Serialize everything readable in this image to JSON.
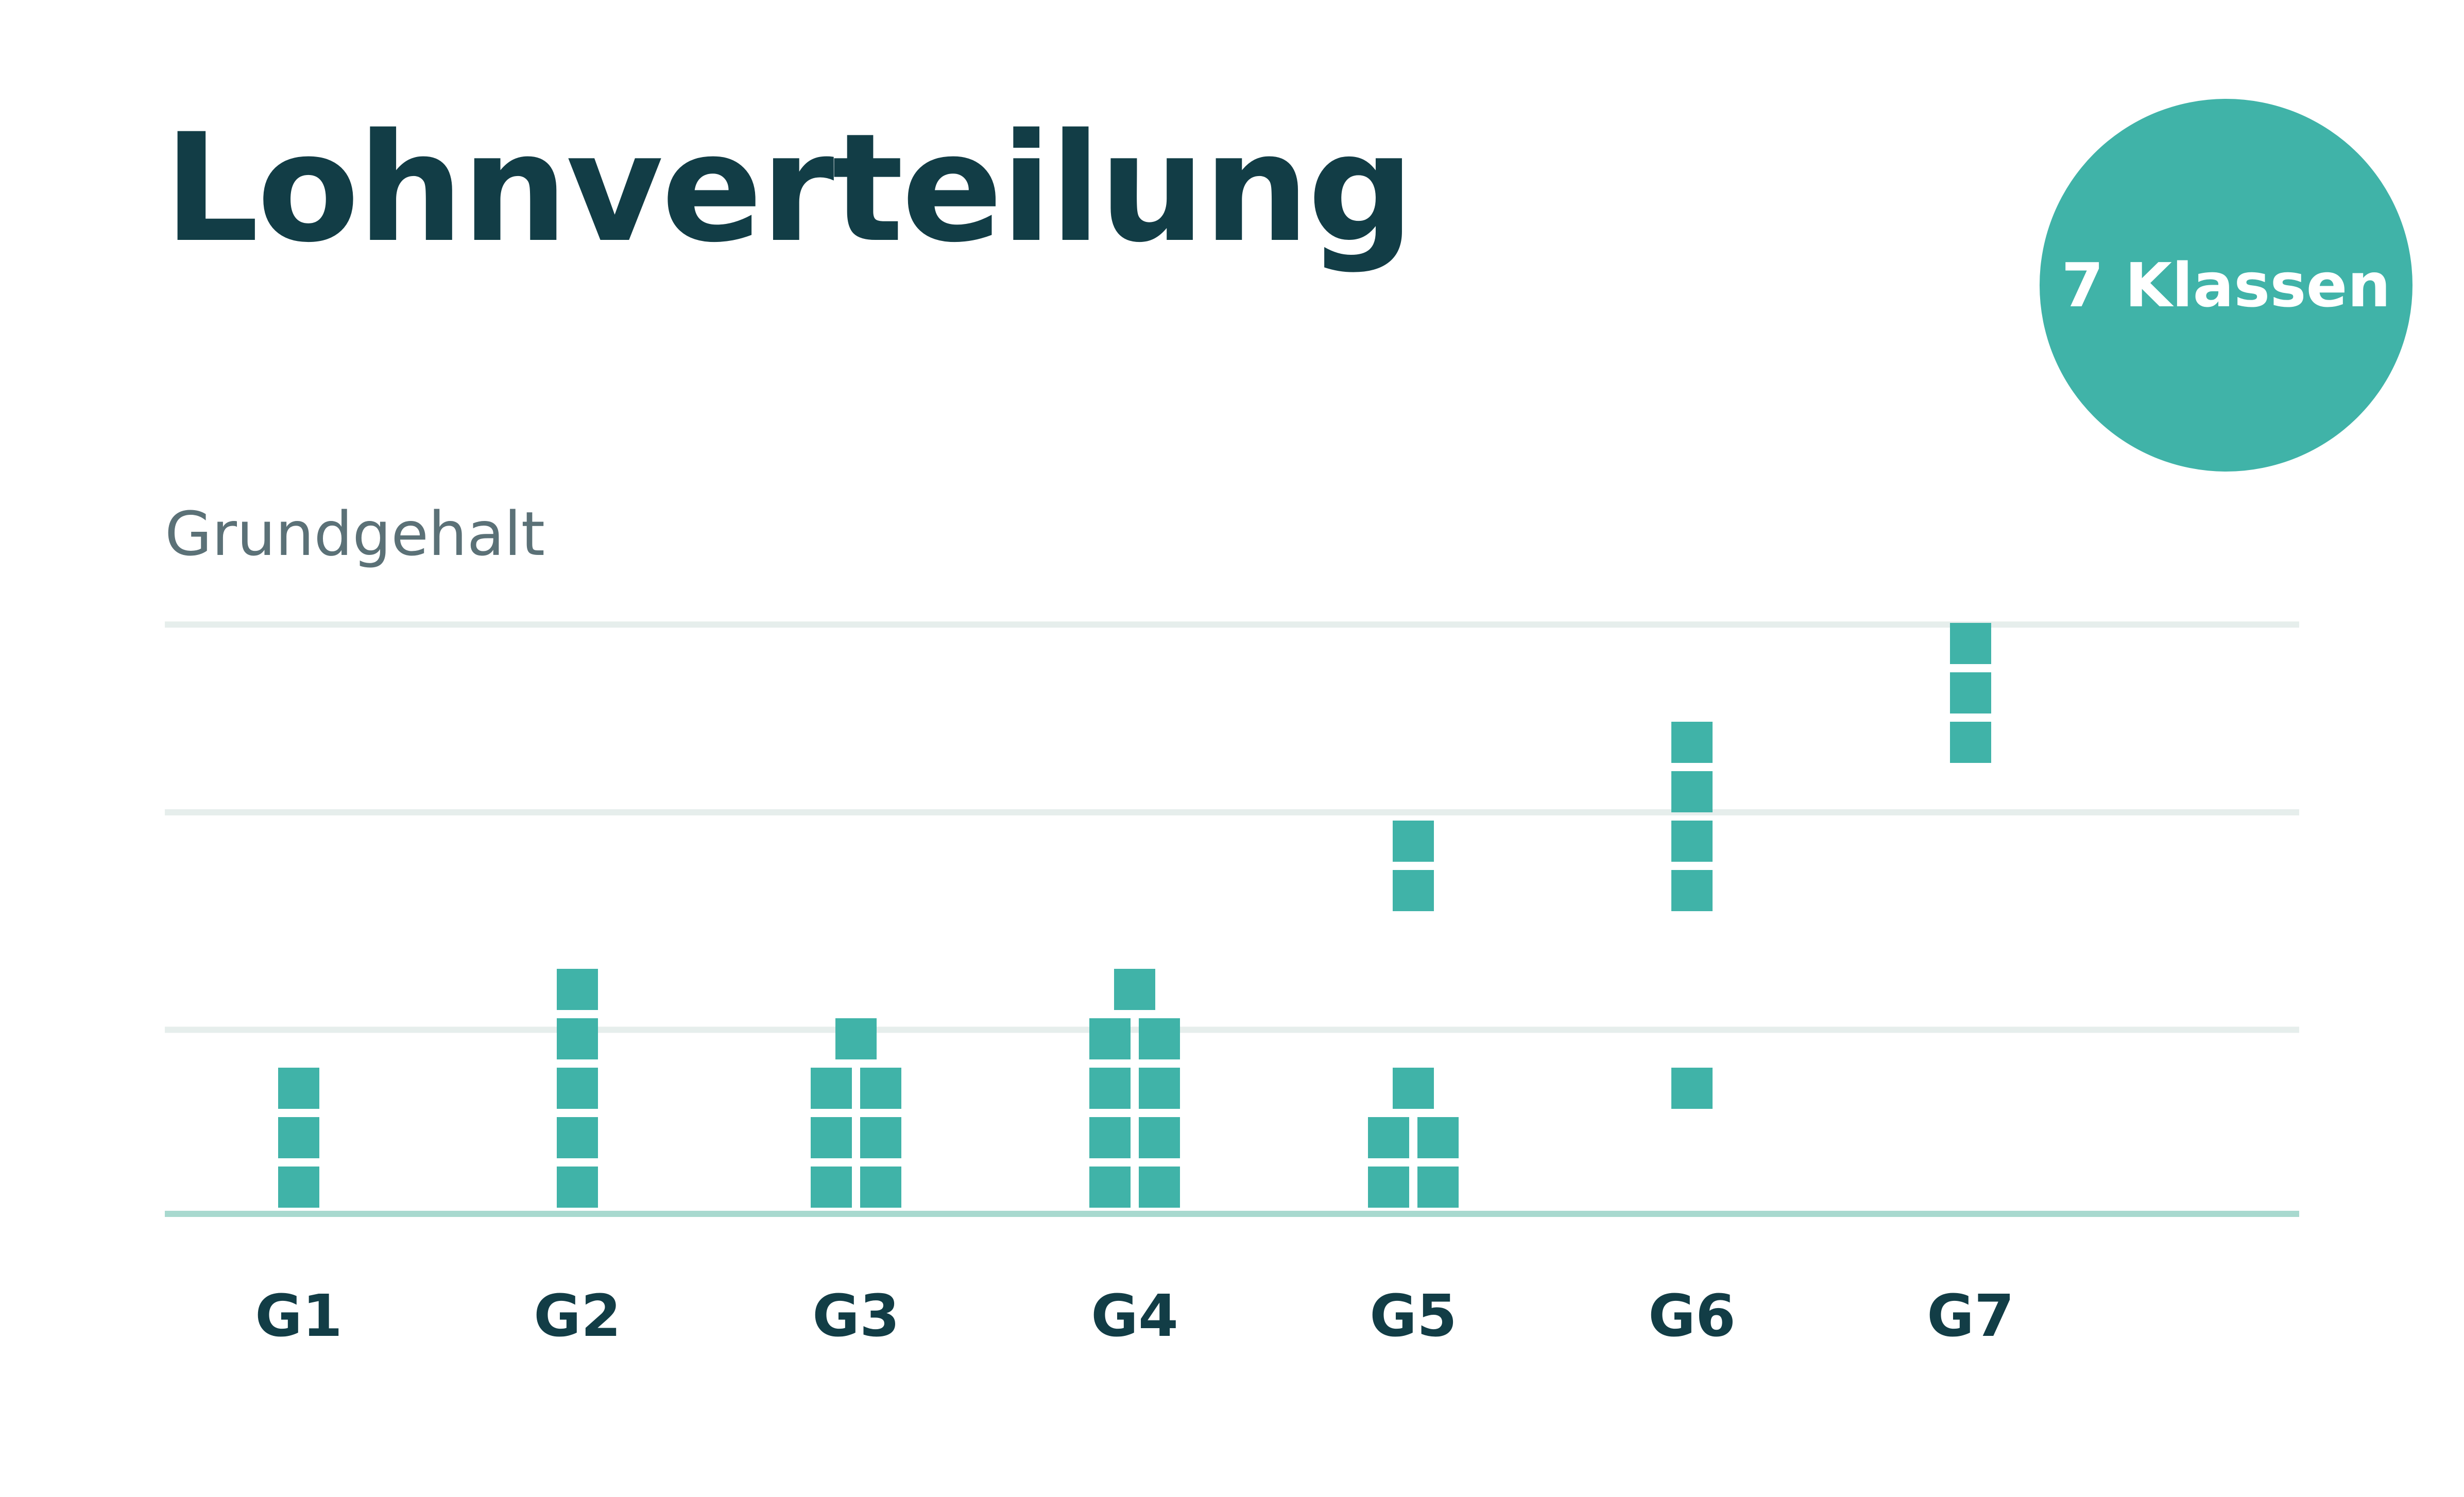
{
  "header": {
    "title": "Lohnverteilung",
    "badge": "7 Klassen",
    "subtitle": "Grundgehalt"
  },
  "colors": {
    "title": "#123d46",
    "accent": "#40b3a8",
    "subtitle": "#5b7177",
    "gridline": "#e6eeec",
    "baseline": "#a8d9cf"
  },
  "chart_data": {
    "type": "dot-plot",
    "title": "Lohnverteilung",
    "ylabel": "Grundgehalt",
    "xlabel": "",
    "categories": [
      "G1",
      "G2",
      "G3",
      "G4",
      "G5",
      "G6",
      "G7"
    ],
    "unit": "one square = one salary",
    "ylim": [
      0,
      12
    ],
    "gridlines_y": [
      3.6,
      8,
      11.8
    ],
    "grid": true,
    "distribution": [
      [
        {
          "level": 0,
          "count": 1
        },
        {
          "level": 1,
          "count": 1
        },
        {
          "level": 2,
          "count": 1
        }
      ],
      [
        {
          "level": 0,
          "count": 1
        },
        {
          "level": 1,
          "count": 1
        },
        {
          "level": 2,
          "count": 1
        },
        {
          "level": 3,
          "count": 1
        },
        {
          "level": 4,
          "count": 1
        }
      ],
      [
        {
          "level": 0,
          "count": 2
        },
        {
          "level": 1,
          "count": 2
        },
        {
          "level": 2,
          "count": 2
        },
        {
          "level": 3,
          "count": 1
        }
      ],
      [
        {
          "level": 0,
          "count": 2
        },
        {
          "level": 1,
          "count": 2
        },
        {
          "level": 2,
          "count": 2
        },
        {
          "level": 3,
          "count": 2
        },
        {
          "level": 4,
          "count": 1
        }
      ],
      [
        {
          "level": 0,
          "count": 2
        },
        {
          "level": 1,
          "count": 2
        },
        {
          "level": 2,
          "count": 1
        },
        {
          "level": 6,
          "count": 1
        },
        {
          "level": 7,
          "count": 1
        }
      ],
      [
        {
          "level": 2,
          "count": 1
        },
        {
          "level": 6,
          "count": 1
        },
        {
          "level": 7,
          "count": 1
        },
        {
          "level": 8,
          "count": 1
        },
        {
          "level": 9,
          "count": 1
        }
      ],
      [
        {
          "level": 9,
          "count": 1
        },
        {
          "level": 10,
          "count": 1
        },
        {
          "level": 11,
          "count": 1
        }
      ]
    ]
  }
}
